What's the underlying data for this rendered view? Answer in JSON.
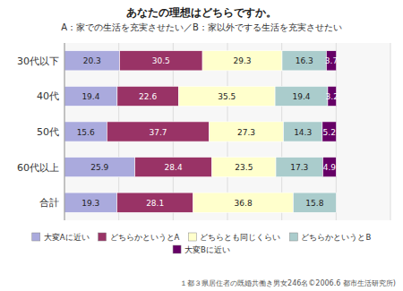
{
  "chart_data": {
    "type": "bar",
    "title": "あなたの理想はどちらですか。",
    "subtitle": "A：家での生活を充実させたい／B：家以外でする生活を充実させたい",
    "annotations": [
      "１都３県居住者の既婚共働き男女246名©2006.6 都市生活研究所)"
    ],
    "orientation": "horizontal",
    "stacked": true,
    "data_labels": true,
    "grid": true,
    "legend": "bottom",
    "tick_labels": "y",
    "categories": [
      "30代以下",
      "40代",
      "50代",
      "60代以上",
      "合計"
    ],
    "xlim": [
      0,
      120
    ],
    "xticks": [
      20,
      40,
      60,
      80,
      100,
      120
    ],
    "series": [
      {
        "name": "大変Aに近い",
        "color": "#aaaadd",
        "values": [
          20.3,
          19.4,
          15.6,
          25.9,
          19.3
        ]
      },
      {
        "name": "どちらかというとA",
        "color": "#993366",
        "values": [
          30.5,
          22.6,
          37.7,
          28.4,
          28.1
        ]
      },
      {
        "name": "どちらとも同じくらい",
        "color": "#ffffcc",
        "values": [
          29.3,
          35.5,
          27.3,
          23.5,
          36.8
        ]
      },
      {
        "name": "どちらかというとB",
        "color": "#aacccc",
        "values": [
          16.3,
          19.4,
          14.3,
          17.3,
          15.8
        ]
      },
      {
        "name": "大変Bに近い",
        "color": "#660066",
        "values": [
          3.7,
          3.2,
          5.2,
          4.9,
          0
        ]
      }
    ]
  }
}
